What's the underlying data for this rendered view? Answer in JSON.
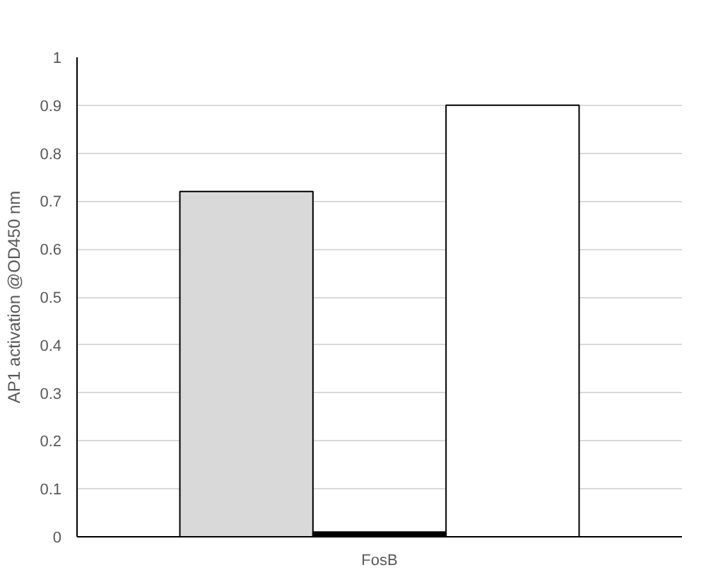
{
  "chart_data": {
    "type": "bar",
    "ylabel": "AP1 activation @OD450 nm",
    "categories": [
      "FosB"
    ],
    "series": [
      {
        "color": "#d9d9d9",
        "values": [
          0.72
        ]
      },
      {
        "color": "#000000",
        "values": [
          0.01
        ]
      },
      {
        "color": "#ffffff",
        "values": [
          0.9
        ]
      }
    ],
    "ylim": [
      0,
      1
    ],
    "yticks": [
      0,
      0.1,
      0.2,
      0.3,
      0.4,
      0.5,
      0.6,
      0.7,
      0.8,
      0.9,
      1
    ],
    "grid": "y"
  }
}
